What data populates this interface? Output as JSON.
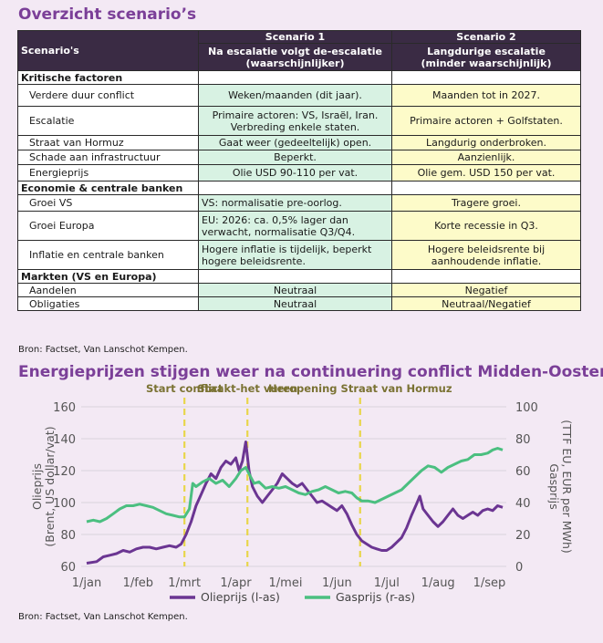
{
  "table": {
    "title": "Overzicht scenario’s",
    "header": {
      "label": "Scenario's",
      "s1_name": "Scenario 1",
      "s1_desc_line1": "Na escalatie volgt de-escalatie",
      "s1_desc_line2": "(waarschijnlijker)",
      "s2_name": "Scenario 2",
      "s2_desc_line1": "Langdurige escalatie",
      "s2_desc_line2": "(minder waarschijnlijk)"
    },
    "sections": {
      "kritisch": "Kritische factoren",
      "economie": "Economie & centrale banken",
      "markten": "Markten (VS en Europa)"
    },
    "rows": {
      "duur": {
        "label": "Verdere duur conflict",
        "s1": "Weken/maanden (dit jaar).",
        "s2": "Maanden tot in 2027."
      },
      "escalatie": {
        "label": "Escalatie",
        "s1_l1": "Primaire actoren: VS, Israël, Iran.",
        "s1_l2": "Verbreding enkele staten.",
        "s2": "Primaire actoren + Golfstaten."
      },
      "hormuz": {
        "label": "Straat van Hormuz",
        "s1": "Gaat weer (gedeeltelijk) open.",
        "s2": "Langdurig onderbroken."
      },
      "schade": {
        "label": "Schade aan infrastructuur",
        "s1": "Beperkt.",
        "s2": "Aanzienlijk."
      },
      "energie": {
        "label": "Energieprijs",
        "s1": "Olie USD 90-110 per vat.",
        "s2": "Olie gem. USD 150 per vat."
      },
      "groei_vs": {
        "label": "Groei VS",
        "s1": "VS: normalisatie pre-oorlog.",
        "s2": "Tragere groei."
      },
      "groei_eu": {
        "label": "Groei Europa",
        "s1_l1": "EU: 2026: ca. 0,5% lager dan",
        "s1_l2": "verwacht, normalisatie Q3/Q4.",
        "s2": "Korte recessie in Q3."
      },
      "inflatie": {
        "label": "Inflatie en centrale banken",
        "s1_l1": "Hogere  inflatie is tijdelijk, beperkt",
        "s1_l2": "hogere beleidsrente.",
        "s2_l1": "Hogere beleidsrente bij",
        "s2_l2": "aanhoudende inflatie."
      },
      "aandelen": {
        "label": "Aandelen",
        "s1": "Neutraal",
        "s2": "Negatief"
      },
      "obligaties": {
        "label": "Obligaties",
        "s1": "Neutraal",
        "s2": "Neutraal/Negatief"
      }
    },
    "source": "Bron: Factset, Van Lanschot Kempen."
  },
  "chart_data": {
    "type": "line",
    "title": "Energieprijzen stijgen weer na continuering conflict Midden-Oosten",
    "ylabel_left_line1": "Olieprijs",
    "ylabel_left_line2": "(Brent, US dollar/vat)",
    "ylabel_right_line1": "Gasprijs",
    "ylabel_right_line2": "(TTF EU, EUR per MWh)",
    "ylim_left": [
      60,
      160
    ],
    "ylim_right": [
      0,
      100
    ],
    "yticks_left": [
      60,
      80,
      100,
      120,
      140,
      160
    ],
    "yticks_right": [
      0,
      20,
      40,
      60,
      80,
      100
    ],
    "x_range_days": [
      0,
      251
    ],
    "xtick_labels": [
      "1/jan",
      "1/feb",
      "1/mrt",
      "1/apr",
      "1/mei",
      "1/jun",
      "1/jul",
      "1/aug",
      "1/sep"
    ],
    "xtick_days": [
      0,
      31,
      59,
      90,
      120,
      151,
      181,
      212,
      243
    ],
    "grid": "horizontal",
    "legend": "bottom-center",
    "events": [
      {
        "label": "Start conflict",
        "day": 59
      },
      {
        "label": "Staakt-het vuren",
        "day": 97
      },
      {
        "label": "Heropening Straat van Hormuz",
        "day": 165
      }
    ],
    "series": [
      {
        "name": "Olieprijs (l-as)",
        "axis": "left",
        "color": "#6b3592",
        "points": [
          [
            0,
            62
          ],
          [
            6,
            63
          ],
          [
            10,
            66
          ],
          [
            14,
            67
          ],
          [
            18,
            68
          ],
          [
            22,
            70
          ],
          [
            26,
            69
          ],
          [
            30,
            71
          ],
          [
            34,
            72
          ],
          [
            38,
            72
          ],
          [
            42,
            71
          ],
          [
            46,
            72
          ],
          [
            50,
            73
          ],
          [
            54,
            72
          ],
          [
            57,
            74
          ],
          [
            60,
            80
          ],
          [
            63,
            88
          ],
          [
            66,
            98
          ],
          [
            69,
            105
          ],
          [
            72,
            112
          ],
          [
            75,
            118
          ],
          [
            78,
            115
          ],
          [
            81,
            122
          ],
          [
            84,
            126
          ],
          [
            87,
            124
          ],
          [
            90,
            128
          ],
          [
            92,
            120
          ],
          [
            94,
            126
          ],
          [
            96,
            138
          ],
          [
            98,
            120
          ],
          [
            100,
            110
          ],
          [
            103,
            104
          ],
          [
            106,
            100
          ],
          [
            109,
            104
          ],
          [
            112,
            108
          ],
          [
            115,
            112
          ],
          [
            118,
            118
          ],
          [
            121,
            115
          ],
          [
            124,
            112
          ],
          [
            127,
            110
          ],
          [
            130,
            112
          ],
          [
            133,
            108
          ],
          [
            136,
            104
          ],
          [
            139,
            100
          ],
          [
            142,
            101
          ],
          [
            145,
            99
          ],
          [
            148,
            97
          ],
          [
            151,
            95
          ],
          [
            154,
            98
          ],
          [
            157,
            93
          ],
          [
            160,
            86
          ],
          [
            163,
            80
          ],
          [
            166,
            76
          ],
          [
            169,
            74
          ],
          [
            172,
            72
          ],
          [
            175,
            71
          ],
          [
            178,
            70
          ],
          [
            181,
            70
          ],
          [
            184,
            72
          ],
          [
            187,
            75
          ],
          [
            190,
            78
          ],
          [
            193,
            84
          ],
          [
            196,
            92
          ],
          [
            199,
            99
          ],
          [
            201,
            104
          ],
          [
            203,
            96
          ],
          [
            206,
            92
          ],
          [
            209,
            88
          ],
          [
            212,
            85
          ],
          [
            215,
            88
          ],
          [
            218,
            92
          ],
          [
            221,
            96
          ],
          [
            224,
            92
          ],
          [
            227,
            90
          ],
          [
            230,
            92
          ],
          [
            233,
            94
          ],
          [
            236,
            92
          ],
          [
            239,
            95
          ],
          [
            242,
            96
          ],
          [
            245,
            95
          ],
          [
            248,
            98
          ],
          [
            251,
            97
          ]
        ]
      },
      {
        "name": "Gasprijs (r-as)",
        "axis": "right",
        "color": "#4bbf80",
        "points": [
          [
            0,
            28
          ],
          [
            4,
            29
          ],
          [
            8,
            28
          ],
          [
            12,
            30
          ],
          [
            16,
            33
          ],
          [
            20,
            36
          ],
          [
            24,
            38
          ],
          [
            28,
            38
          ],
          [
            32,
            39
          ],
          [
            36,
            38
          ],
          [
            40,
            37
          ],
          [
            44,
            35
          ],
          [
            48,
            33
          ],
          [
            52,
            32
          ],
          [
            56,
            31
          ],
          [
            59,
            31
          ],
          [
            62,
            36
          ],
          [
            64,
            52
          ],
          [
            66,
            50
          ],
          [
            70,
            53
          ],
          [
            74,
            55
          ],
          [
            78,
            52
          ],
          [
            82,
            54
          ],
          [
            86,
            50
          ],
          [
            90,
            55
          ],
          [
            93,
            60
          ],
          [
            96,
            62
          ],
          [
            98,
            58
          ],
          [
            101,
            52
          ],
          [
            104,
            53
          ],
          [
            108,
            49
          ],
          [
            112,
            50
          ],
          [
            116,
            49
          ],
          [
            120,
            50
          ],
          [
            124,
            48
          ],
          [
            128,
            46
          ],
          [
            132,
            45
          ],
          [
            136,
            47
          ],
          [
            140,
            48
          ],
          [
            144,
            50
          ],
          [
            148,
            48
          ],
          [
            152,
            46
          ],
          [
            156,
            47
          ],
          [
            160,
            46
          ],
          [
            163,
            43
          ],
          [
            166,
            41
          ],
          [
            170,
            41
          ],
          [
            174,
            40
          ],
          [
            178,
            42
          ],
          [
            182,
            44
          ],
          [
            186,
            46
          ],
          [
            190,
            48
          ],
          [
            194,
            52
          ],
          [
            198,
            56
          ],
          [
            202,
            60
          ],
          [
            206,
            63
          ],
          [
            210,
            62
          ],
          [
            214,
            59
          ],
          [
            218,
            62
          ],
          [
            222,
            64
          ],
          [
            226,
            66
          ],
          [
            230,
            67
          ],
          [
            234,
            70
          ],
          [
            238,
            70
          ],
          [
            242,
            71
          ],
          [
            245,
            73
          ],
          [
            248,
            74
          ],
          [
            251,
            73
          ]
        ]
      }
    ]
  },
  "chart_source": "Bron: Factset, Van Lanschot Kempen."
}
